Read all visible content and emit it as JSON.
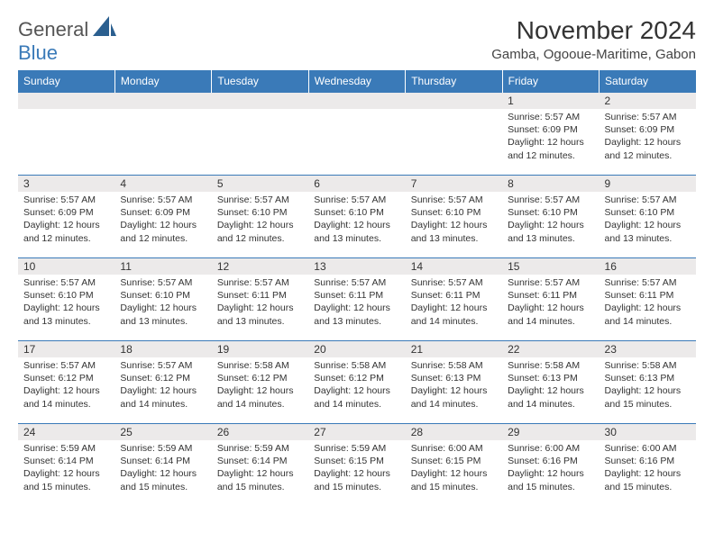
{
  "logo": {
    "general": "General",
    "blue": "Blue"
  },
  "header": {
    "title": "November 2024",
    "location": "Gamba, Ogooue-Maritime, Gabon"
  },
  "colors": {
    "accent": "#3a7ab8",
    "row_alt": "#eceaea",
    "text": "#333333"
  },
  "day_headers": [
    "Sunday",
    "Monday",
    "Tuesday",
    "Wednesday",
    "Thursday",
    "Friday",
    "Saturday"
  ],
  "weeks": [
    [
      null,
      null,
      null,
      null,
      null,
      {
        "n": "1",
        "sunrise": "Sunrise: 5:57 AM",
        "sunset": "Sunset: 6:09 PM",
        "day1": "Daylight: 12 hours",
        "day2": "and 12 minutes."
      },
      {
        "n": "2",
        "sunrise": "Sunrise: 5:57 AM",
        "sunset": "Sunset: 6:09 PM",
        "day1": "Daylight: 12 hours",
        "day2": "and 12 minutes."
      }
    ],
    [
      {
        "n": "3",
        "sunrise": "Sunrise: 5:57 AM",
        "sunset": "Sunset: 6:09 PM",
        "day1": "Daylight: 12 hours",
        "day2": "and 12 minutes."
      },
      {
        "n": "4",
        "sunrise": "Sunrise: 5:57 AM",
        "sunset": "Sunset: 6:09 PM",
        "day1": "Daylight: 12 hours",
        "day2": "and 12 minutes."
      },
      {
        "n": "5",
        "sunrise": "Sunrise: 5:57 AM",
        "sunset": "Sunset: 6:10 PM",
        "day1": "Daylight: 12 hours",
        "day2": "and 12 minutes."
      },
      {
        "n": "6",
        "sunrise": "Sunrise: 5:57 AM",
        "sunset": "Sunset: 6:10 PM",
        "day1": "Daylight: 12 hours",
        "day2": "and 13 minutes."
      },
      {
        "n": "7",
        "sunrise": "Sunrise: 5:57 AM",
        "sunset": "Sunset: 6:10 PM",
        "day1": "Daylight: 12 hours",
        "day2": "and 13 minutes."
      },
      {
        "n": "8",
        "sunrise": "Sunrise: 5:57 AM",
        "sunset": "Sunset: 6:10 PM",
        "day1": "Daylight: 12 hours",
        "day2": "and 13 minutes."
      },
      {
        "n": "9",
        "sunrise": "Sunrise: 5:57 AM",
        "sunset": "Sunset: 6:10 PM",
        "day1": "Daylight: 12 hours",
        "day2": "and 13 minutes."
      }
    ],
    [
      {
        "n": "10",
        "sunrise": "Sunrise: 5:57 AM",
        "sunset": "Sunset: 6:10 PM",
        "day1": "Daylight: 12 hours",
        "day2": "and 13 minutes."
      },
      {
        "n": "11",
        "sunrise": "Sunrise: 5:57 AM",
        "sunset": "Sunset: 6:10 PM",
        "day1": "Daylight: 12 hours",
        "day2": "and 13 minutes."
      },
      {
        "n": "12",
        "sunrise": "Sunrise: 5:57 AM",
        "sunset": "Sunset: 6:11 PM",
        "day1": "Daylight: 12 hours",
        "day2": "and 13 minutes."
      },
      {
        "n": "13",
        "sunrise": "Sunrise: 5:57 AM",
        "sunset": "Sunset: 6:11 PM",
        "day1": "Daylight: 12 hours",
        "day2": "and 13 minutes."
      },
      {
        "n": "14",
        "sunrise": "Sunrise: 5:57 AM",
        "sunset": "Sunset: 6:11 PM",
        "day1": "Daylight: 12 hours",
        "day2": "and 14 minutes."
      },
      {
        "n": "15",
        "sunrise": "Sunrise: 5:57 AM",
        "sunset": "Sunset: 6:11 PM",
        "day1": "Daylight: 12 hours",
        "day2": "and 14 minutes."
      },
      {
        "n": "16",
        "sunrise": "Sunrise: 5:57 AM",
        "sunset": "Sunset: 6:11 PM",
        "day1": "Daylight: 12 hours",
        "day2": "and 14 minutes."
      }
    ],
    [
      {
        "n": "17",
        "sunrise": "Sunrise: 5:57 AM",
        "sunset": "Sunset: 6:12 PM",
        "day1": "Daylight: 12 hours",
        "day2": "and 14 minutes."
      },
      {
        "n": "18",
        "sunrise": "Sunrise: 5:57 AM",
        "sunset": "Sunset: 6:12 PM",
        "day1": "Daylight: 12 hours",
        "day2": "and 14 minutes."
      },
      {
        "n": "19",
        "sunrise": "Sunrise: 5:58 AM",
        "sunset": "Sunset: 6:12 PM",
        "day1": "Daylight: 12 hours",
        "day2": "and 14 minutes."
      },
      {
        "n": "20",
        "sunrise": "Sunrise: 5:58 AM",
        "sunset": "Sunset: 6:12 PM",
        "day1": "Daylight: 12 hours",
        "day2": "and 14 minutes."
      },
      {
        "n": "21",
        "sunrise": "Sunrise: 5:58 AM",
        "sunset": "Sunset: 6:13 PM",
        "day1": "Daylight: 12 hours",
        "day2": "and 14 minutes."
      },
      {
        "n": "22",
        "sunrise": "Sunrise: 5:58 AM",
        "sunset": "Sunset: 6:13 PM",
        "day1": "Daylight: 12 hours",
        "day2": "and 14 minutes."
      },
      {
        "n": "23",
        "sunrise": "Sunrise: 5:58 AM",
        "sunset": "Sunset: 6:13 PM",
        "day1": "Daylight: 12 hours",
        "day2": "and 15 minutes."
      }
    ],
    [
      {
        "n": "24",
        "sunrise": "Sunrise: 5:59 AM",
        "sunset": "Sunset: 6:14 PM",
        "day1": "Daylight: 12 hours",
        "day2": "and 15 minutes."
      },
      {
        "n": "25",
        "sunrise": "Sunrise: 5:59 AM",
        "sunset": "Sunset: 6:14 PM",
        "day1": "Daylight: 12 hours",
        "day2": "and 15 minutes."
      },
      {
        "n": "26",
        "sunrise": "Sunrise: 5:59 AM",
        "sunset": "Sunset: 6:14 PM",
        "day1": "Daylight: 12 hours",
        "day2": "and 15 minutes."
      },
      {
        "n": "27",
        "sunrise": "Sunrise: 5:59 AM",
        "sunset": "Sunset: 6:15 PM",
        "day1": "Daylight: 12 hours",
        "day2": "and 15 minutes."
      },
      {
        "n": "28",
        "sunrise": "Sunrise: 6:00 AM",
        "sunset": "Sunset: 6:15 PM",
        "day1": "Daylight: 12 hours",
        "day2": "and 15 minutes."
      },
      {
        "n": "29",
        "sunrise": "Sunrise: 6:00 AM",
        "sunset": "Sunset: 6:16 PM",
        "day1": "Daylight: 12 hours",
        "day2": "and 15 minutes."
      },
      {
        "n": "30",
        "sunrise": "Sunrise: 6:00 AM",
        "sunset": "Sunset: 6:16 PM",
        "day1": "Daylight: 12 hours",
        "day2": "and 15 minutes."
      }
    ]
  ]
}
